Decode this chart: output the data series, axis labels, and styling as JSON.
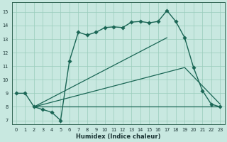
{
  "xlabel": "Humidex (Indice chaleur)",
  "xlim": [
    -0.5,
    23.5
  ],
  "ylim": [
    6.7,
    15.7
  ],
  "yticks": [
    7,
    8,
    9,
    10,
    11,
    12,
    13,
    14,
    15
  ],
  "xticks": [
    0,
    1,
    2,
    3,
    4,
    5,
    6,
    7,
    8,
    9,
    10,
    11,
    12,
    13,
    14,
    15,
    16,
    17,
    18,
    19,
    20,
    21,
    22,
    23
  ],
  "bg_color": "#c8e8e0",
  "grid_color": "#99ccbb",
  "line_color": "#1a6655",
  "lines": [
    {
      "x": [
        0,
        1,
        2,
        3,
        4,
        5,
        6,
        7,
        8,
        9,
        10,
        11,
        12,
        13,
        14,
        15,
        16,
        17,
        18,
        19,
        20,
        21,
        22,
        23
      ],
      "y": [
        9.0,
        9.0,
        8.0,
        7.8,
        7.6,
        7.0,
        11.4,
        13.5,
        13.3,
        13.5,
        13.85,
        13.9,
        13.85,
        14.25,
        14.3,
        14.2,
        14.3,
        15.1,
        14.3,
        13.1,
        10.9,
        9.2,
        8.2,
        8.0
      ],
      "marker": "D",
      "markersize": 2.8,
      "linewidth": 1.0,
      "has_marker": true
    },
    {
      "x": [
        2,
        23
      ],
      "y": [
        8.0,
        8.0
      ],
      "has_marker": false,
      "linewidth": 0.9
    },
    {
      "x": [
        2,
        17
      ],
      "y": [
        8.0,
        13.1
      ],
      "has_marker": false,
      "linewidth": 0.9
    },
    {
      "x": [
        2,
        19,
        23
      ],
      "y": [
        8.0,
        10.9,
        8.2
      ],
      "has_marker": false,
      "linewidth": 0.9
    }
  ]
}
